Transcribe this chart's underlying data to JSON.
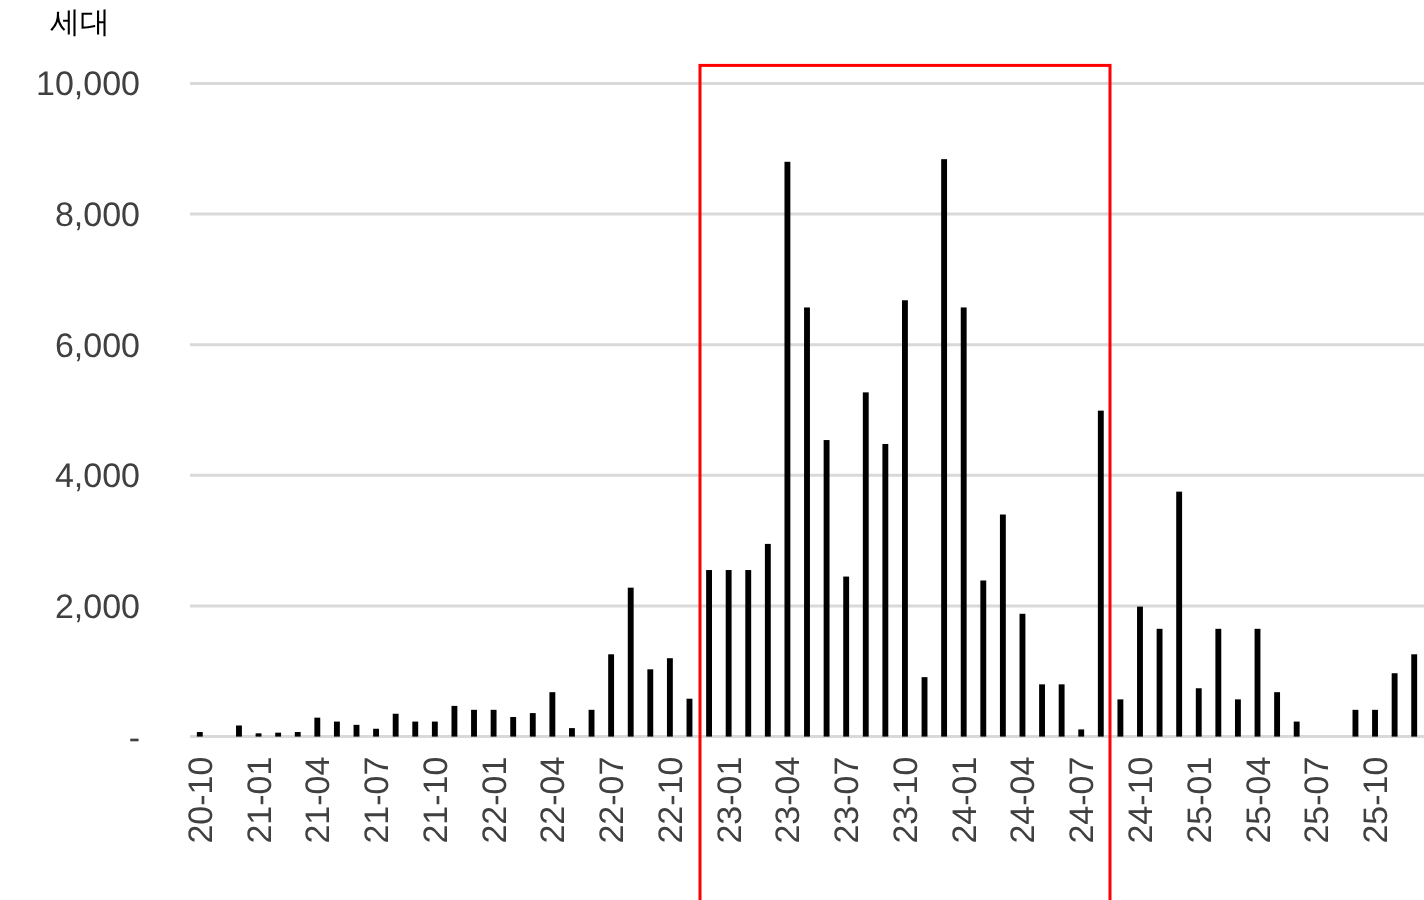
{
  "chart_data": {
    "type": "bar",
    "ylabel": "세대",
    "categories": [
      "20-10",
      null,
      null,
      "21-01",
      null,
      null,
      "21-04",
      null,
      null,
      "21-07",
      null,
      null,
      "21-10",
      null,
      null,
      "22-01",
      null,
      null,
      "22-04",
      null,
      null,
      "22-07",
      null,
      null,
      "22-10",
      null,
      null,
      "23-01",
      null,
      null,
      "23-04",
      null,
      null,
      "23-07",
      null,
      null,
      "23-10",
      null,
      null,
      "24-01",
      null,
      null,
      "24-04",
      null,
      null,
      "24-07",
      null,
      null,
      "24-10",
      null,
      null,
      "25-01",
      null,
      null,
      "25-04",
      null,
      null,
      "25-07",
      null,
      null,
      "25-10",
      null,
      null
    ],
    "values": [
      70,
      0,
      170,
      50,
      60,
      70,
      290,
      230,
      180,
      120,
      350,
      230,
      230,
      470,
      410,
      410,
      300,
      360,
      680,
      130,
      410,
      1260,
      2280,
      1030,
      1200,
      580,
      2550,
      2550,
      2550,
      2950,
      8800,
      6570,
      4540,
      2450,
      5270,
      4480,
      6680,
      910,
      8840,
      6570,
      2390,
      3400,
      1880,
      800,
      800,
      110,
      4990,
      570,
      1990,
      1650,
      3750,
      740,
      1650,
      570,
      1650,
      680,
      230,
      0,
      0,
      410,
      410,
      970,
      1260
    ],
    "color": "#000000",
    "ylim": [
      0,
      10000
    ],
    "yticks": [
      {
        "value": 0,
        "label": "-"
      },
      {
        "value": 2000,
        "label": "2,000"
      },
      {
        "value": 4000,
        "label": "4,000"
      },
      {
        "value": 6000,
        "label": "6,000"
      },
      {
        "value": 8000,
        "label": "8,000"
      },
      {
        "value": 10000,
        "label": "10,000"
      }
    ],
    "grid": "y"
  }
}
